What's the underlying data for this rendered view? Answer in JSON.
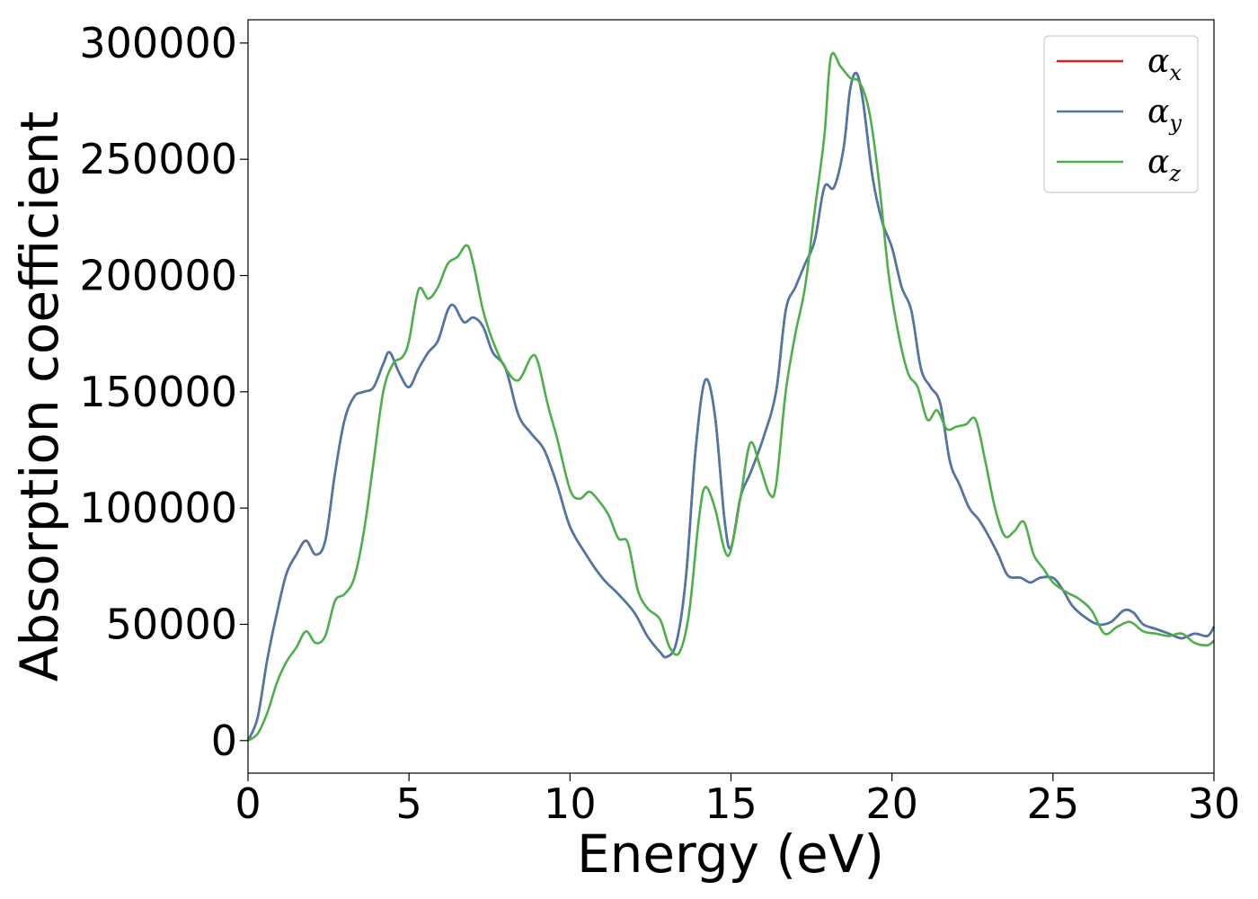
{
  "chart_data": {
    "type": "line",
    "title": "",
    "xlabel": "Energy (eV)",
    "ylabel": "Absorption coefficient",
    "xlim": [
      0,
      30
    ],
    "ylim": [
      -14000,
      310000
    ],
    "xticks": [
      0,
      5,
      10,
      15,
      20,
      25,
      30
    ],
    "yticks": [
      0,
      50000,
      100000,
      150000,
      200000,
      250000,
      300000
    ],
    "grid": false,
    "legend_position": "top-right",
    "series": [
      {
        "name": "αx",
        "legend_base": "α",
        "legend_sub": "x",
        "color": "#e41a1c",
        "x": [
          0,
          0.3,
          0.6,
          0.9,
          1.2,
          1.5,
          1.8,
          2.1,
          2.4,
          2.7,
          3.0,
          3.3,
          3.6,
          3.9,
          4.2,
          4.4,
          4.7,
          5.0,
          5.3,
          5.6,
          5.9,
          6.2,
          6.4,
          6.7,
          7.0,
          7.3,
          7.6,
          8.0,
          8.4,
          8.8,
          9.2,
          9.6,
          10.0,
          10.5,
          11.0,
          11.5,
          12.0,
          12.4,
          12.8,
          13.0,
          13.3,
          13.6,
          13.9,
          14.2,
          14.5,
          14.8,
          15.0,
          15.3,
          15.6,
          16.0,
          16.4,
          16.7,
          17.0,
          17.3,
          17.6,
          17.9,
          18.2,
          18.5,
          18.7,
          18.9,
          19.1,
          19.4,
          19.7,
          20.0,
          20.3,
          20.6,
          20.9,
          21.2,
          21.5,
          21.8,
          22.1,
          22.4,
          22.7,
          23.0,
          23.3,
          23.6,
          24.0,
          24.3,
          24.6,
          25.0,
          25.3,
          25.6,
          26.0,
          26.4,
          26.8,
          27.2,
          27.5,
          27.8,
          28.2,
          28.6,
          29.0,
          29.4,
          29.8,
          30.0
        ],
        "y": [
          0,
          10000,
          35000,
          55000,
          72000,
          80000,
          86000,
          80000,
          86000,
          115000,
          138000,
          148000,
          150000,
          152000,
          162000,
          167000,
          158000,
          152000,
          160000,
          167000,
          172000,
          185000,
          187000,
          180000,
          182000,
          178000,
          167000,
          160000,
          140000,
          132000,
          125000,
          110000,
          92000,
          80000,
          70000,
          63000,
          55000,
          45000,
          38000,
          36000,
          42000,
          70000,
          125000,
          155000,
          140000,
          95000,
          83000,
          105000,
          115000,
          130000,
          150000,
          185000,
          195000,
          205000,
          215000,
          238000,
          238000,
          255000,
          280000,
          287000,
          275000,
          242000,
          223000,
          212000,
          195000,
          185000,
          160000,
          152000,
          145000,
          120000,
          110000,
          100000,
          95000,
          88000,
          80000,
          71000,
          70000,
          68000,
          70000,
          70000,
          65000,
          58000,
          53000,
          50000,
          51000,
          56000,
          55000,
          50000,
          48000,
          46000,
          44000,
          46000,
          45000,
          49000
        ]
      },
      {
        "name": "αy",
        "legend_base": "α",
        "legend_sub": "y",
        "color": "#4a78a8",
        "x": [
          0,
          0.3,
          0.6,
          0.9,
          1.2,
          1.5,
          1.8,
          2.1,
          2.4,
          2.7,
          3.0,
          3.3,
          3.6,
          3.9,
          4.2,
          4.4,
          4.7,
          5.0,
          5.3,
          5.6,
          5.9,
          6.2,
          6.4,
          6.7,
          7.0,
          7.3,
          7.6,
          8.0,
          8.4,
          8.8,
          9.2,
          9.6,
          10.0,
          10.5,
          11.0,
          11.5,
          12.0,
          12.4,
          12.8,
          13.0,
          13.3,
          13.6,
          13.9,
          14.2,
          14.5,
          14.8,
          15.0,
          15.3,
          15.6,
          16.0,
          16.4,
          16.7,
          17.0,
          17.3,
          17.6,
          17.9,
          18.2,
          18.5,
          18.7,
          18.9,
          19.1,
          19.4,
          19.7,
          20.0,
          20.3,
          20.6,
          20.9,
          21.2,
          21.5,
          21.8,
          22.1,
          22.4,
          22.7,
          23.0,
          23.3,
          23.6,
          24.0,
          24.3,
          24.6,
          25.0,
          25.3,
          25.6,
          26.0,
          26.4,
          26.8,
          27.2,
          27.5,
          27.8,
          28.2,
          28.6,
          29.0,
          29.4,
          29.8,
          30.0
        ],
        "y": [
          0,
          10000,
          35000,
          55000,
          72000,
          80000,
          86000,
          80000,
          86000,
          115000,
          138000,
          148000,
          150000,
          152000,
          162000,
          167000,
          158000,
          152000,
          160000,
          167000,
          172000,
          185000,
          187000,
          180000,
          182000,
          178000,
          167000,
          160000,
          140000,
          132000,
          125000,
          110000,
          92000,
          80000,
          70000,
          63000,
          55000,
          45000,
          38000,
          36000,
          42000,
          70000,
          125000,
          155000,
          140000,
          95000,
          83000,
          105000,
          115000,
          130000,
          150000,
          185000,
          195000,
          205000,
          215000,
          238000,
          238000,
          255000,
          280000,
          287000,
          275000,
          242000,
          223000,
          212000,
          195000,
          185000,
          160000,
          152000,
          145000,
          120000,
          110000,
          100000,
          95000,
          88000,
          80000,
          71000,
          70000,
          68000,
          70000,
          70000,
          65000,
          58000,
          53000,
          50000,
          51000,
          56000,
          55000,
          50000,
          48000,
          46000,
          44000,
          46000,
          45000,
          49000
        ]
      },
      {
        "name": "αz",
        "legend_base": "α",
        "legend_sub": "z",
        "color": "#4daf4a",
        "x": [
          0,
          0.3,
          0.6,
          0.9,
          1.2,
          1.5,
          1.8,
          2.1,
          2.4,
          2.7,
          3.0,
          3.3,
          3.6,
          3.9,
          4.2,
          4.5,
          4.8,
          5.0,
          5.3,
          5.6,
          5.9,
          6.2,
          6.5,
          6.8,
          7.0,
          7.3,
          7.6,
          8.0,
          8.4,
          8.8,
          9.0,
          9.3,
          9.6,
          10.0,
          10.3,
          10.6,
          10.9,
          11.2,
          11.5,
          11.8,
          12.1,
          12.4,
          12.8,
          13.1,
          13.4,
          13.7,
          14.0,
          14.2,
          14.5,
          14.8,
          15.0,
          15.3,
          15.6,
          15.9,
          16.2,
          16.4,
          16.7,
          17.0,
          17.3,
          17.6,
          17.9,
          18.1,
          18.4,
          18.7,
          19.0,
          19.3,
          19.6,
          19.9,
          20.2,
          20.5,
          20.8,
          21.1,
          21.4,
          21.7,
          22.0,
          22.3,
          22.6,
          22.9,
          23.2,
          23.5,
          23.8,
          24.1,
          24.4,
          24.7,
          25.0,
          25.4,
          25.8,
          26.2,
          26.6,
          27.0,
          27.4,
          27.8,
          28.2,
          28.6,
          29.0,
          29.4,
          29.8,
          30.0
        ],
        "y": [
          0,
          3000,
          12000,
          25000,
          34000,
          40000,
          47000,
          42000,
          45000,
          60000,
          63000,
          70000,
          90000,
          120000,
          150000,
          162000,
          165000,
          172000,
          194000,
          190000,
          195000,
          205000,
          208000,
          213000,
          205000,
          185000,
          172000,
          160000,
          155000,
          165000,
          163000,
          145000,
          130000,
          108000,
          104000,
          107000,
          103000,
          97000,
          87000,
          85000,
          65000,
          57000,
          52000,
          40000,
          38000,
          55000,
          95000,
          109000,
          100000,
          82000,
          82000,
          105000,
          128000,
          118000,
          106000,
          110000,
          150000,
          175000,
          195000,
          228000,
          260000,
          294000,
          290000,
          285000,
          283000,
          270000,
          240000,
          200000,
          175000,
          158000,
          152000,
          138000,
          142000,
          134000,
          135000,
          136000,
          138000,
          120000,
          100000,
          88000,
          90000,
          94000,
          80000,
          74000,
          68000,
          64000,
          61000,
          56000,
          46000,
          49000,
          51000,
          47000,
          46000,
          45000,
          46000,
          42000,
          41000,
          43000
        ]
      }
    ]
  }
}
